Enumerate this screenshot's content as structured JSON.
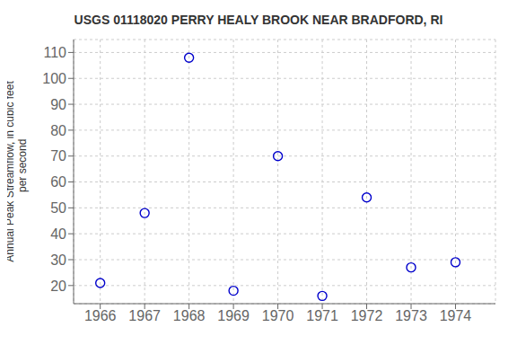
{
  "chart_data": {
    "type": "scatter",
    "title": "USGS 01118020 PERRY HEALY BROOK NEAR BRADFORD, RI",
    "ylabel": "Annual Peak Streamflow, in cubic feet\n    per second",
    "x": [
      1966,
      1967,
      1968,
      1969,
      1970,
      1971,
      1972,
      1973,
      1974
    ],
    "values": [
      21,
      48,
      108,
      18,
      70,
      16,
      54,
      27,
      29
    ],
    "xlim": [
      1965.4,
      1974.9
    ],
    "xticks": [
      1966,
      1967,
      1968,
      1969,
      1970,
      1971,
      1972,
      1973,
      1974
    ],
    "ylim": [
      13,
      115
    ],
    "yticks": [
      20,
      30,
      40,
      50,
      60,
      70,
      80,
      90,
      100,
      110
    ],
    "color": "#0000cc",
    "marker": "circle",
    "grid": true
  }
}
